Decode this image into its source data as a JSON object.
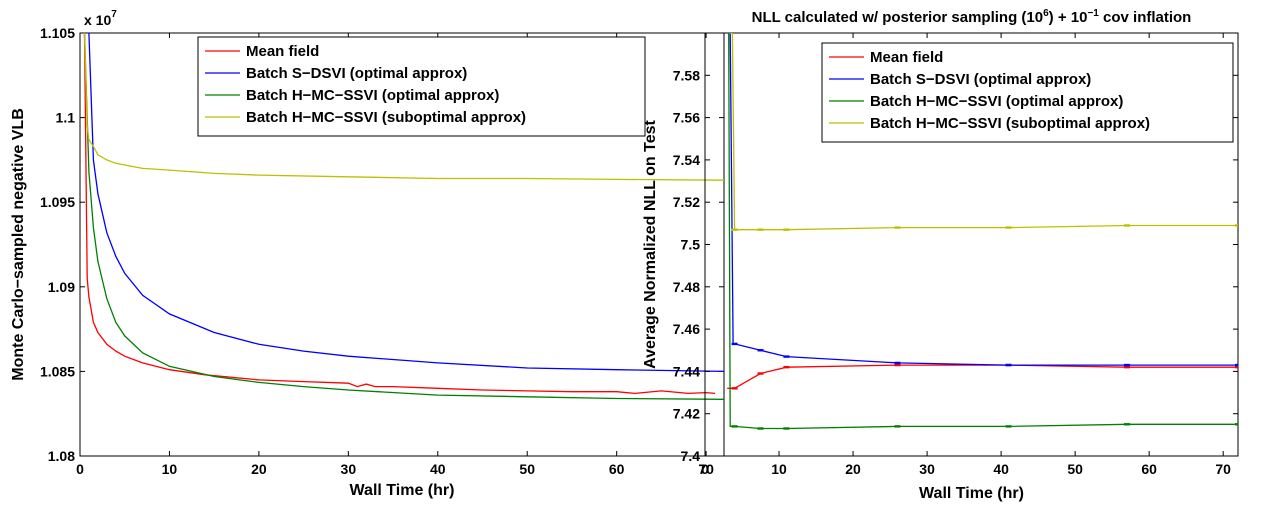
{
  "chart_data": [
    {
      "type": "line",
      "title": "",
      "xlabel": "Wall Time (hr)",
      "ylabel": "Monte Carlo−sampled negative VLB",
      "exponent_label": "x 10",
      "exponent_power": "7",
      "xlim": [
        0,
        72
      ],
      "ylim": [
        1.08,
        1.105
      ],
      "xticks": [
        "0",
        "10",
        "20",
        "30",
        "40",
        "50",
        "60",
        "70"
      ],
      "xtick_values": [
        0,
        10,
        20,
        30,
        40,
        50,
        60,
        70
      ],
      "yticks": [
        "1.08",
        "1.085",
        "1.09",
        "1.095",
        "1.1",
        "1.105"
      ],
      "ytick_values": [
        1.08,
        1.085,
        1.09,
        1.095,
        1.1,
        1.105
      ],
      "grid": false,
      "legend_position": "top-right",
      "series": [
        {
          "name": "Mean field",
          "color": "#ff0000",
          "x": [
            0.5,
            0.8,
            1,
            1.5,
            2,
            3,
            4,
            5,
            7,
            10,
            14,
            20,
            25,
            30,
            31,
            32,
            33,
            35,
            40,
            45,
            50,
            55,
            60,
            62,
            65,
            68,
            70,
            71
          ],
          "y": [
            1.105,
            1.0905,
            1.0894,
            1.0879,
            1.0873,
            1.0866,
            1.0862,
            1.0859,
            1.0855,
            1.0851,
            1.0848,
            1.0845,
            1.0844,
            1.0843,
            1.0841,
            1.08425,
            1.0841,
            1.0841,
            1.084,
            1.0839,
            1.08385,
            1.0838,
            1.0838,
            1.0837,
            1.08385,
            1.0837,
            1.08375,
            1.0837
          ]
        },
        {
          "name": "Batch S−DSVI (optimal approx)",
          "color": "#0000ff",
          "x": [
            1,
            1.5,
            2,
            3,
            4,
            5,
            7,
            10,
            15,
            20,
            25,
            30,
            40,
            50,
            60,
            72
          ],
          "y": [
            1.105,
            1.0975,
            1.0955,
            1.0932,
            1.0918,
            1.0908,
            1.0895,
            1.0884,
            1.0873,
            1.0866,
            1.0862,
            1.0859,
            1.0855,
            1.0852,
            1.0851,
            1.085
          ]
        },
        {
          "name": "Batch H−MC−SSVI (optimal approx)",
          "color": "#008000",
          "x": [
            0.5,
            0.8,
            1,
            1.5,
            2,
            3,
            4,
            5,
            7,
            10,
            15,
            20,
            25,
            30,
            40,
            50,
            60,
            72
          ],
          "y": [
            1.105,
            1.1,
            1.0968,
            1.0935,
            1.0915,
            1.0893,
            1.0879,
            1.0871,
            1.0861,
            1.0853,
            1.0847,
            1.08435,
            1.0841,
            1.0839,
            1.0836,
            1.0835,
            1.0834,
            1.08335
          ]
        },
        {
          "name": "Batch H−MC−SSVI (suboptimal approx)",
          "color": "#bfbf00",
          "x": [
            0.5,
            0.8,
            1,
            1.5,
            2,
            3,
            4,
            5,
            7,
            10,
            15,
            20,
            30,
            40,
            50,
            60,
            72
          ],
          "y": [
            1.105,
            1.0995,
            1.0987,
            1.0983,
            1.0978,
            1.0975,
            1.0973,
            1.0972,
            1.097,
            1.0969,
            1.0967,
            1.0966,
            1.0965,
            1.0964,
            1.0964,
            1.09635,
            1.0963
          ]
        }
      ]
    },
    {
      "type": "line",
      "title": "NLL calculated w/ posterior sampling (10",
      "title_sup1": "6",
      "title_mid": ") + 10",
      "title_sup2": "−1",
      "title_end": " cov inflation",
      "xlabel": "Wall Time (hr)",
      "ylabel": "Average Normalized NLL on Test",
      "xlim": [
        0,
        72
      ],
      "ylim": [
        7.4,
        7.6
      ],
      "xticks": [
        "0",
        "10",
        "20",
        "30",
        "40",
        "50",
        "60",
        "70"
      ],
      "xtick_values": [
        0,
        10,
        20,
        30,
        40,
        50,
        60,
        70
      ],
      "yticks": [
        "7.4",
        "7.42",
        "7.44",
        "7.46",
        "7.48",
        "7.5",
        "7.52",
        "7.54",
        "7.56",
        "7.58"
      ],
      "ytick_values": [
        7.4,
        7.42,
        7.44,
        7.46,
        7.48,
        7.5,
        7.52,
        7.54,
        7.56,
        7.58
      ],
      "grid": false,
      "legend_position": "top-right",
      "series": [
        {
          "name": "Mean field",
          "color": "#ff0000",
          "x": [
            3,
            4,
            7.5,
            11,
            26,
            41,
            57,
            72
          ],
          "y": [
            7.432,
            7.432,
            7.439,
            7.442,
            7.443,
            7.443,
            7.442,
            7.442
          ]
        },
        {
          "name": "Batch S−DSVI (optimal approx)",
          "color": "#0000ff",
          "x": [
            3,
            3.4,
            3.8,
            4,
            7.5,
            11,
            26,
            41,
            57,
            72
          ],
          "y": [
            7.6,
            7.6,
            7.453,
            7.453,
            7.45,
            7.447,
            7.444,
            7.443,
            7.443,
            7.443
          ]
        },
        {
          "name": "Batch H−MC−SSVI (optimal approx)",
          "color": "#008000",
          "x": [
            3,
            3.2,
            3.4,
            4,
            7.5,
            11,
            26,
            41,
            57,
            72
          ],
          "y": [
            7.6,
            7.6,
            7.414,
            7.414,
            7.413,
            7.413,
            7.414,
            7.414,
            7.415,
            7.415
          ]
        },
        {
          "name": "Batch H−MC−SSVI (suboptimal approx)",
          "color": "#bfbf00",
          "x": [
            3.3,
            3.7,
            4,
            7.5,
            11,
            26,
            41,
            57,
            72
          ],
          "y": [
            7.6,
            7.6,
            7.507,
            7.507,
            7.507,
            7.508,
            7.508,
            7.509,
            7.509
          ]
        }
      ]
    }
  ]
}
